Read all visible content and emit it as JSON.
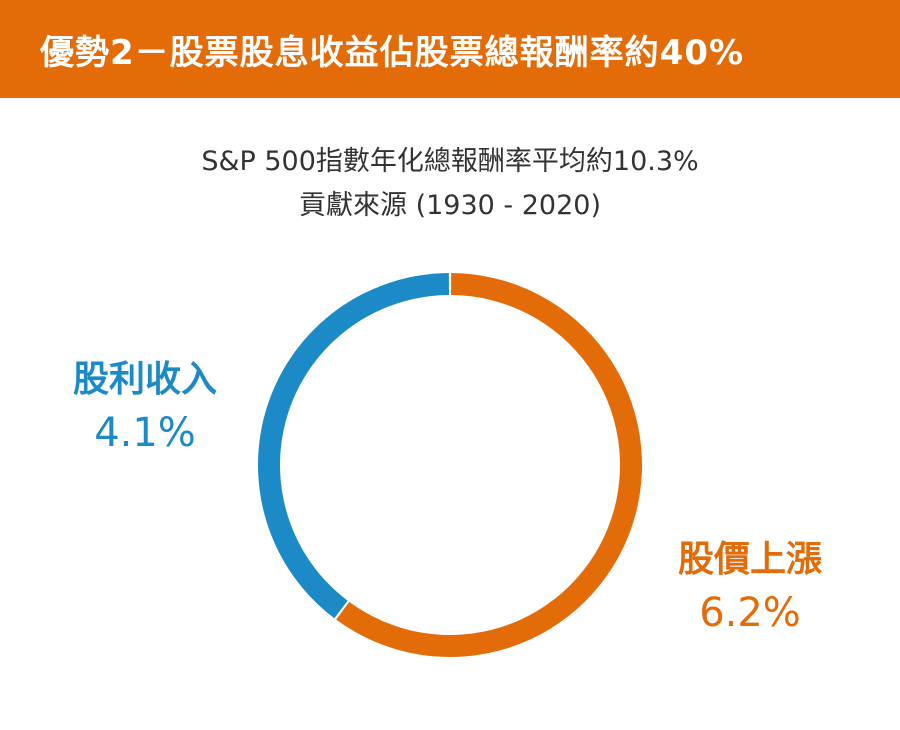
{
  "header": {
    "title": "優勢2－股票股息收益佔股票總報酬率約40%"
  },
  "chart_data": {
    "type": "pie",
    "style": "donut",
    "title_line1": "S&P 500指數年化總報酬率平均約10.3%",
    "title_line2": "貢獻來源 (1930 - 2020)",
    "slices": [
      {
        "label": "股價上漲",
        "value_text": "6.2%",
        "value": 6.2,
        "color": "#E36C09"
      },
      {
        "label": "股利收入",
        "value_text": "4.1%",
        "value": 4.1,
        "color": "#1B8AC6"
      }
    ]
  }
}
